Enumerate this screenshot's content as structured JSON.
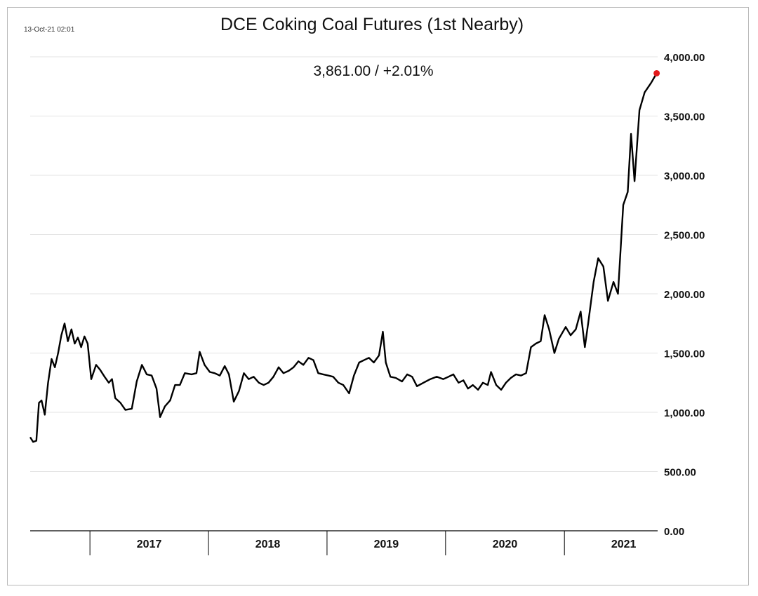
{
  "timestamp": "13-Oct-21 02:01",
  "chart_data": {
    "type": "line",
    "title": "DCE Coking Coal Futures (1st Nearby)",
    "last_value_label": "3,861.00  /  +2.01%",
    "last_value": 3861,
    "change_pct": 2.01,
    "xlabel": "",
    "ylabel": "",
    "ylim": [
      0,
      4000
    ],
    "y_ticks": [
      "0.00",
      "500.00",
      "1,000.00",
      "1,500.00",
      "2,000.00",
      "2,500.00",
      "3,000.00",
      "3,500.00",
      "4,000.00"
    ],
    "y_axis_side": "right",
    "grid": true,
    "x_categories": [
      "2017",
      "2018",
      "2019",
      "2020",
      "2021"
    ],
    "x_range": [
      "2016-07",
      "2021-10"
    ],
    "series": [
      {
        "color": "#000000",
        "last_point_color": "#e31a1c",
        "points": [
          [
            "2016-07-01",
            790
          ],
          [
            "2016-07-10",
            750
          ],
          [
            "2016-07-20",
            760
          ],
          [
            "2016-07-28",
            1080
          ],
          [
            "2016-08-05",
            1100
          ],
          [
            "2016-08-15",
            980
          ],
          [
            "2016-08-25",
            1250
          ],
          [
            "2016-09-05",
            1450
          ],
          [
            "2016-09-15",
            1380
          ],
          [
            "2016-09-25",
            1500
          ],
          [
            "2016-10-05",
            1650
          ],
          [
            "2016-10-15",
            1750
          ],
          [
            "2016-10-25",
            1600
          ],
          [
            "2016-11-05",
            1700
          ],
          [
            "2016-11-15",
            1580
          ],
          [
            "2016-11-25",
            1630
          ],
          [
            "2016-12-05",
            1550
          ],
          [
            "2016-12-15",
            1640
          ],
          [
            "2016-12-25",
            1580
          ],
          [
            "2017-01-05",
            1280
          ],
          [
            "2017-01-20",
            1400
          ],
          [
            "2017-02-01",
            1360
          ],
          [
            "2017-02-15",
            1300
          ],
          [
            "2017-02-28",
            1250
          ],
          [
            "2017-03-10",
            1280
          ],
          [
            "2017-03-20",
            1120
          ],
          [
            "2017-04-05",
            1080
          ],
          [
            "2017-04-20",
            1020
          ],
          [
            "2017-05-10",
            1030
          ],
          [
            "2017-05-25",
            1260
          ],
          [
            "2017-06-10",
            1400
          ],
          [
            "2017-06-25",
            1320
          ],
          [
            "2017-07-10",
            1310
          ],
          [
            "2017-07-25",
            1200
          ],
          [
            "2017-08-05",
            960
          ],
          [
            "2017-08-20",
            1050
          ],
          [
            "2017-09-05",
            1100
          ],
          [
            "2017-09-20",
            1230
          ],
          [
            "2017-10-05",
            1230
          ],
          [
            "2017-10-20",
            1330
          ],
          [
            "2017-11-10",
            1320
          ],
          [
            "2017-11-25",
            1330
          ],
          [
            "2017-12-05",
            1510
          ],
          [
            "2017-12-20",
            1400
          ],
          [
            "2018-01-05",
            1340
          ],
          [
            "2018-01-20",
            1330
          ],
          [
            "2018-02-05",
            1310
          ],
          [
            "2018-02-20",
            1390
          ],
          [
            "2018-03-05",
            1320
          ],
          [
            "2018-03-20",
            1090
          ],
          [
            "2018-04-05",
            1180
          ],
          [
            "2018-04-20",
            1330
          ],
          [
            "2018-05-05",
            1280
          ],
          [
            "2018-05-20",
            1300
          ],
          [
            "2018-06-05",
            1250
          ],
          [
            "2018-06-20",
            1230
          ],
          [
            "2018-07-05",
            1250
          ],
          [
            "2018-07-20",
            1300
          ],
          [
            "2018-08-05",
            1380
          ],
          [
            "2018-08-20",
            1330
          ],
          [
            "2018-09-05",
            1350
          ],
          [
            "2018-09-20",
            1380
          ],
          [
            "2018-10-05",
            1430
          ],
          [
            "2018-10-20",
            1400
          ],
          [
            "2018-11-05",
            1460
          ],
          [
            "2018-11-20",
            1440
          ],
          [
            "2018-12-05",
            1330
          ],
          [
            "2018-12-20",
            1320
          ],
          [
            "2019-01-05",
            1310
          ],
          [
            "2019-01-20",
            1300
          ],
          [
            "2019-02-05",
            1250
          ],
          [
            "2019-02-20",
            1230
          ],
          [
            "2019-03-10",
            1160
          ],
          [
            "2019-03-25",
            1310
          ],
          [
            "2019-04-10",
            1420
          ],
          [
            "2019-04-25",
            1440
          ],
          [
            "2019-05-10",
            1460
          ],
          [
            "2019-05-25",
            1420
          ],
          [
            "2019-06-10",
            1480
          ],
          [
            "2019-06-22",
            1680
          ],
          [
            "2019-07-01",
            1420
          ],
          [
            "2019-07-15",
            1300
          ],
          [
            "2019-08-01",
            1290
          ],
          [
            "2019-08-20",
            1260
          ],
          [
            "2019-09-05",
            1320
          ],
          [
            "2019-09-20",
            1300
          ],
          [
            "2019-10-05",
            1220
          ],
          [
            "2019-10-25",
            1250
          ],
          [
            "2019-11-15",
            1280
          ],
          [
            "2019-12-05",
            1300
          ],
          [
            "2019-12-25",
            1280
          ],
          [
            "2020-01-10",
            1300
          ],
          [
            "2020-01-25",
            1320
          ],
          [
            "2020-02-10",
            1250
          ],
          [
            "2020-02-25",
            1270
          ],
          [
            "2020-03-10",
            1200
          ],
          [
            "2020-03-25",
            1230
          ],
          [
            "2020-04-10",
            1190
          ],
          [
            "2020-04-25",
            1250
          ],
          [
            "2020-05-10",
            1230
          ],
          [
            "2020-05-20",
            1340
          ],
          [
            "2020-06-05",
            1230
          ],
          [
            "2020-06-20",
            1190
          ],
          [
            "2020-07-05",
            1250
          ],
          [
            "2020-07-20",
            1290
          ],
          [
            "2020-08-05",
            1320
          ],
          [
            "2020-08-20",
            1310
          ],
          [
            "2020-09-05",
            1330
          ],
          [
            "2020-09-20",
            1550
          ],
          [
            "2020-10-05",
            1580
          ],
          [
            "2020-10-20",
            1600
          ],
          [
            "2020-11-01",
            1820
          ],
          [
            "2020-11-15",
            1700
          ],
          [
            "2020-12-01",
            1500
          ],
          [
            "2020-12-15",
            1620
          ],
          [
            "2021-01-05",
            1720
          ],
          [
            "2021-01-20",
            1650
          ],
          [
            "2021-02-05",
            1700
          ],
          [
            "2021-02-20",
            1850
          ],
          [
            "2021-03-05",
            1550
          ],
          [
            "2021-03-15",
            1750
          ],
          [
            "2021-04-01",
            2100
          ],
          [
            "2021-04-15",
            2300
          ],
          [
            "2021-05-01",
            2230
          ],
          [
            "2021-05-15",
            1940
          ],
          [
            "2021-06-01",
            2100
          ],
          [
            "2021-06-15",
            2000
          ],
          [
            "2021-07-01",
            2750
          ],
          [
            "2021-07-15",
            2860
          ],
          [
            "2021-07-25",
            3350
          ],
          [
            "2021-08-05",
            2950
          ],
          [
            "2021-08-20",
            3550
          ],
          [
            "2021-09-05",
            3700
          ],
          [
            "2021-09-25",
            3780
          ],
          [
            "2021-10-12",
            3861
          ]
        ]
      }
    ]
  }
}
